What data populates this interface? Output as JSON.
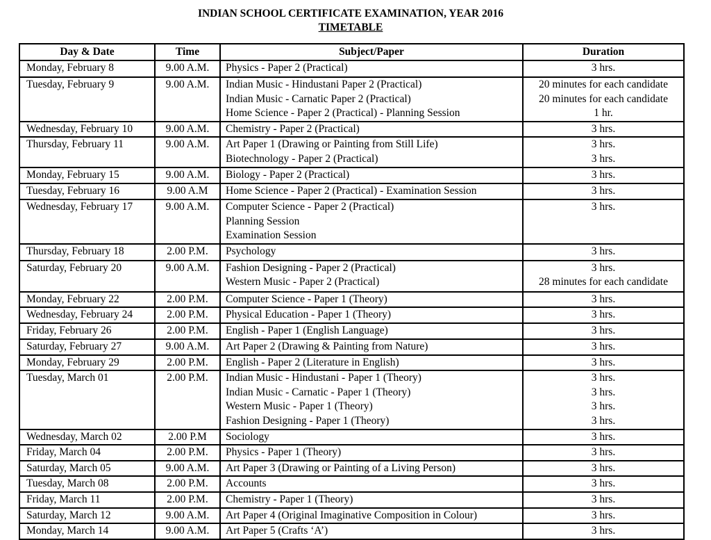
{
  "title": "INDIAN SCHOOL CERTIFICATE EXAMINATION, YEAR 2016",
  "subtitle": "TIMETABLE",
  "columns": [
    "Day & Date",
    "Time",
    "Subject/Paper",
    "Duration"
  ],
  "rows": [
    {
      "day": "Monday, February 8",
      "time": "9.00 A.M.",
      "subjects": [
        "Physics - Paper 2 (Practical)"
      ],
      "durations": [
        "3 hrs."
      ]
    },
    {
      "day": "Tuesday, February 9",
      "time": "9.00 A.M.",
      "subjects": [
        "Indian Music - Hindustani Paper 2 (Practical)",
        "Indian Music - Carnatic Paper 2 (Practical)",
        "Home Science - Paper 2 (Practical) - Planning Session"
      ],
      "durations": [
        "20 minutes for each candidate",
        "20 minutes for each candidate",
        "1 hr."
      ]
    },
    {
      "day": "Wednesday, February 10",
      "time": "9.00 A.M.",
      "subjects": [
        "Chemistry - Paper 2 (Practical)"
      ],
      "durations": [
        "3 hrs."
      ]
    },
    {
      "day": "Thursday, February 11",
      "time": "9.00 A.M.",
      "subjects": [
        "Art Paper 1 (Drawing or Painting from Still Life)",
        "Biotechnology - Paper 2 (Practical)"
      ],
      "durations": [
        "3 hrs.",
        "3 hrs."
      ]
    },
    {
      "day": "Monday, February 15",
      "time": "9.00 A.M.",
      "subjects": [
        "Biology - Paper 2 (Practical)"
      ],
      "durations": [
        "3 hrs."
      ]
    },
    {
      "day": "Tuesday, February 16",
      "time": "9.00 A.M",
      "subjects": [
        "Home Science - Paper 2 (Practical) - Examination Session"
      ],
      "durations": [
        "3 hrs."
      ]
    },
    {
      "day": "Wednesday, February 17",
      "time": "9.00 A.M.",
      "subjects": [
        "Computer Science - Paper 2 (Practical)",
        "Planning Session",
        "Examination Session"
      ],
      "durations": [
        "3 hrs."
      ]
    },
    {
      "day": "Thursday, February 18",
      "time": "2.00 P.M.",
      "subjects": [
        "Psychology"
      ],
      "durations": [
        "3 hrs."
      ]
    },
    {
      "day": "Saturday, February 20",
      "time": "9.00 A.M.",
      "subjects": [
        "Fashion Designing - Paper 2 (Practical)",
        "Western Music - Paper 2 (Practical)"
      ],
      "durations": [
        "3 hrs.",
        "28 minutes for each candidate"
      ]
    },
    {
      "day": "Monday, February 22",
      "time": "2.00 P.M.",
      "subjects": [
        "Computer Science - Paper 1 (Theory)"
      ],
      "durations": [
        "3 hrs."
      ]
    },
    {
      "day": "Wednesday, February 24",
      "time": "2.00 P.M.",
      "subjects": [
        "Physical Education - Paper 1 (Theory)"
      ],
      "durations": [
        "3 hrs."
      ]
    },
    {
      "day": "Friday, February 26",
      "time": "2.00 P.M.",
      "subjects": [
        "English - Paper 1 (English Language)"
      ],
      "durations": [
        "3 hrs."
      ]
    },
    {
      "day": "Saturday, February 27",
      "time": "9.00 A.M.",
      "subjects": [
        "Art Paper 2 (Drawing & Painting from Nature)"
      ],
      "durations": [
        "3 hrs."
      ]
    },
    {
      "day": "Monday, February 29",
      "time": "2.00 P.M.",
      "subjects": [
        "English - Paper 2 (Literature in English)"
      ],
      "durations": [
        "3 hrs."
      ]
    },
    {
      "day": "Tuesday, March 01",
      "time": "2.00 P.M.",
      "subjects": [
        "Indian Music - Hindustani - Paper 1 (Theory)",
        "Indian Music - Carnatic - Paper 1 (Theory)",
        "Western Music - Paper 1 (Theory)",
        "Fashion Designing - Paper 1 (Theory)"
      ],
      "durations": [
        "3 hrs.",
        "3 hrs.",
        "3 hrs.",
        "3 hrs."
      ]
    },
    {
      "day": "Wednesday, March 02",
      "time": "2.00 P.M",
      "subjects": [
        "Sociology"
      ],
      "durations": [
        "3 hrs."
      ]
    },
    {
      "day": "Friday, March 04",
      "time": "2.00 P.M.",
      "subjects": [
        "Physics - Paper 1 (Theory)"
      ],
      "durations": [
        "3 hrs."
      ]
    },
    {
      "day": "Saturday, March 05",
      "time": "9.00 A.M.",
      "subjects": [
        "Art Paper 3 (Drawing or Painting of a Living Person)"
      ],
      "durations": [
        "3 hrs."
      ]
    },
    {
      "day": "Tuesday, March 08",
      "time": "2.00 P.M.",
      "subjects": [
        "Accounts"
      ],
      "durations": [
        "3 hrs."
      ]
    },
    {
      "day": "Friday, March 11",
      "time": "2.00 P.M.",
      "subjects": [
        "Chemistry - Paper 1 (Theory)"
      ],
      "durations": [
        "3 hrs."
      ]
    },
    {
      "day": "Saturday, March 12",
      "time": "9.00 A.M.",
      "subjects": [
        "Art Paper 4 (Original Imaginative Composition in Colour)"
      ],
      "durations": [
        "3 hrs."
      ]
    },
    {
      "day": "Monday, March 14",
      "time": "9.00 A.M.",
      "subjects": [
        "Art Paper 5 (Crafts ‘A’)"
      ],
      "durations": [
        "3 hrs."
      ]
    }
  ]
}
